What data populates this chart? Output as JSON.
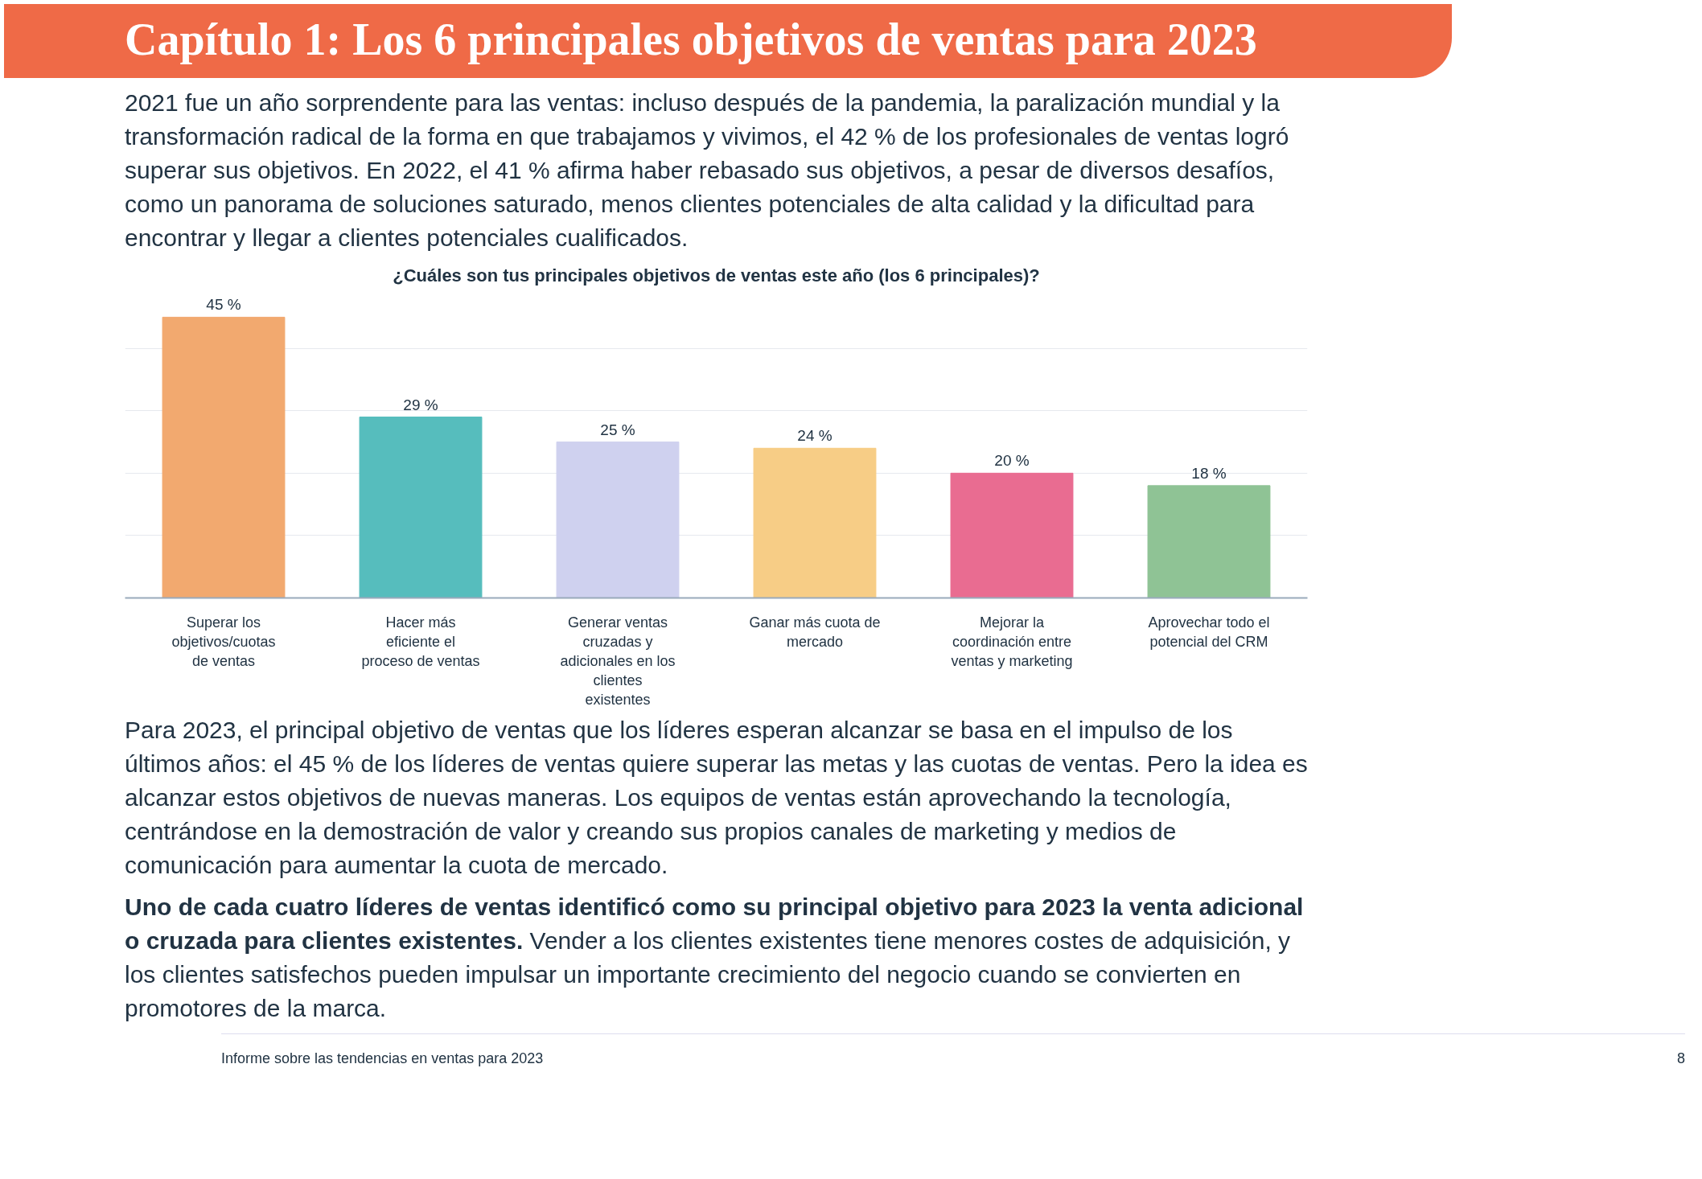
{
  "chart_data": {
    "type": "bar",
    "title": "¿Cuáles son tus principales objetivos de ventas este año (los 6 principales)?",
    "categories": [
      "Superar los objetivos/cuotas de ventas",
      "Hacer más eficiente el proceso de ventas",
      "Generar ventas cruzadas y adicionales en los clientes existentes",
      "Ganar más cuota de mercado",
      "Mejorar la coordinación entre ventas y marketing",
      "Aprovechar todo el potencial del CRM"
    ],
    "values": [
      45,
      29,
      25,
      24,
      20,
      18
    ],
    "colors": [
      "#f2a96f",
      "#56bdbd",
      "#cfd1ef",
      "#f7cd86",
      "#e96c91",
      "#8fc395"
    ],
    "value_labels": [
      "45 %",
      "29 %",
      "25 %",
      "24 %",
      "20 %",
      "18 %"
    ],
    "grid": "y",
    "annotations": [
      "Capítulo 1: Los 6 principales objetivos de ventas para 2023",
      "2021 fue un año sorprendente para las ventas: incluso después de la pandemia, la paralización mundial y la transformación radical de la forma en que trabajamos y vivimos, el 42 % de los profesionales de ventas logró superar sus objetivos. En 2022, el 41 % afirma haber rebasado sus objetivos, a pesar de diversos desafíos, como un panorama de soluciones saturado, menos clientes potenciales de alta calidad y la dificultad para encontrar y llegar a clientes potenciales cualificados.",
      "Para 2023, el principal objetivo de ventas que los líderes esperan alcanzar se basa en el impulso de los últimos años: el 45 % de los líderes de ventas quiere superar las metas y las cuotas de ventas. Pero la idea es alcanzar estos objetivos de nuevas maneras. Los equipos de ventas están aprovechando la tecnología, centrándose en la demostración de valor y creando sus propios canales de marketing y medios de comunicación para aumentar la cuota de mercado.",
      "Uno de cada cuatro líderes de ventas identificó como su principal objetivo para 2023 la venta adicional o cruzada para clientes existentes.",
      "Vender a los clientes existentes tiene menores costes de adquisición, y los clientes satisfechos pueden impulsar un importante crecimiento del negocio cuando se convierten en promotores de la marca.",
      "Informe sobre las tendencias en ventas para 2023",
      "8"
    ]
  }
}
